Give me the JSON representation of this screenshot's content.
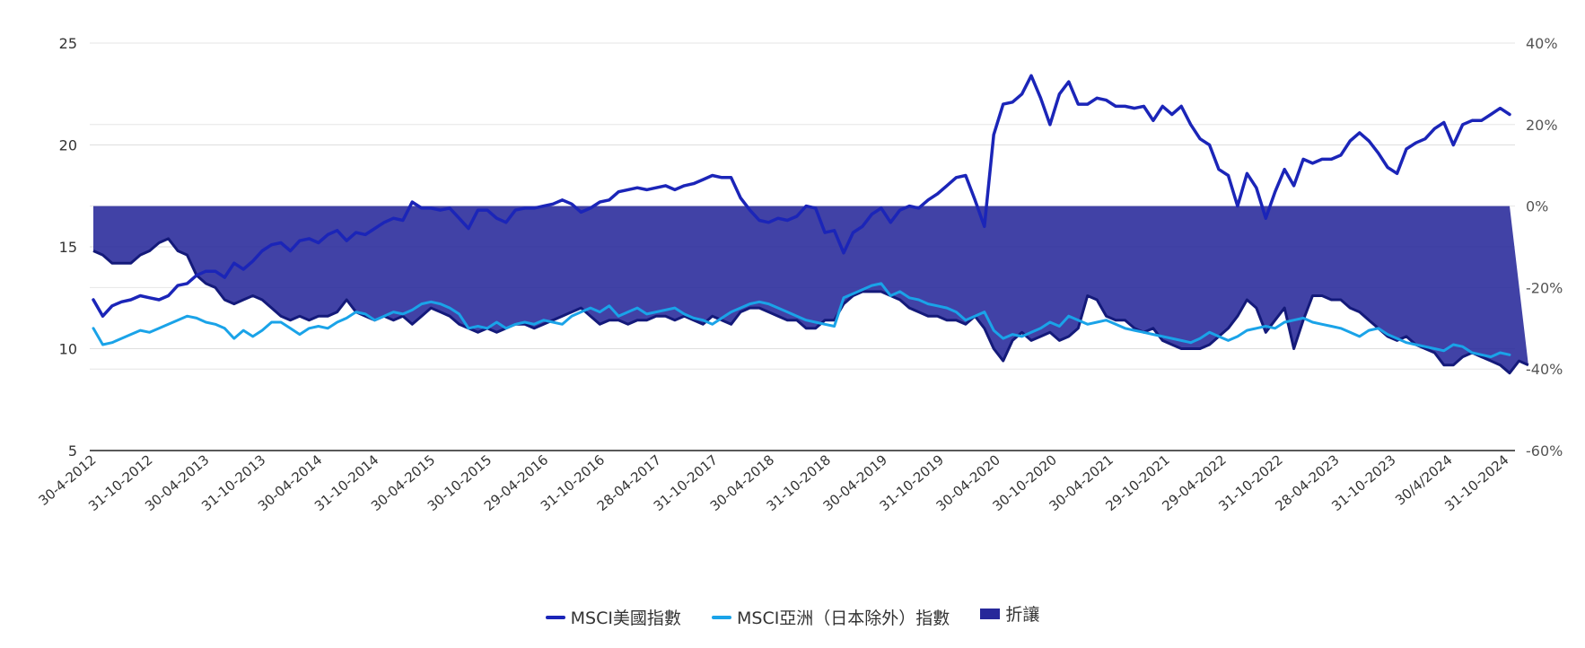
{
  "chart_data": {
    "type": "line",
    "colors": {
      "usa": "#1b25b8",
      "asia": "#1aa3e8",
      "discount": "#27289a"
    },
    "y_left": {
      "ticks": [
        "5",
        "10",
        "15",
        "20",
        "25"
      ],
      "range": [
        5,
        25
      ]
    },
    "y_right": {
      "ticks": [
        "40%",
        "20%",
        "0%",
        "-20%",
        "-40%",
        "-60%"
      ],
      "range": [
        -0.6,
        0.4
      ]
    },
    "x_tick_labels": [
      "30-4-2012",
      "31-10-2012",
      "30-04-2013",
      "31-10-2013",
      "30-04-2014",
      "31-10-2014",
      "30-04-2015",
      "30-10-2015",
      "29-04-2016",
      "31-10-2016",
      "28-04-2017",
      "31-10-2017",
      "30-04-2018",
      "31-10-2018",
      "30-04-2019",
      "31-10-2019",
      "30-04-2020",
      "30-10-2020",
      "30-04-2021",
      "29-10-2021",
      "29-04-2022",
      "31-10-2022",
      "28-04-2023",
      "31-10-2023",
      "30/4/2024",
      "31-10-2024"
    ],
    "legend": [
      {
        "label": "MSCI美國指數",
        "key": "usa"
      },
      {
        "label": "MSCI亞洲（日本除外）指數",
        "key": "asia"
      },
      {
        "label": "折讓",
        "key": "discount"
      }
    ],
    "series": [
      {
        "name": "MSCI美國指數",
        "axis": "left",
        "values": [
          12.4,
          11.6,
          12.1,
          12.3,
          12.4,
          12.6,
          12.5,
          12.4,
          12.6,
          13.1,
          13.2,
          13.6,
          13.8,
          13.8,
          13.5,
          14.2,
          13.9,
          14.3,
          14.8,
          15.1,
          15.2,
          14.8,
          15.3,
          15.4,
          15.2,
          15.6,
          15.8,
          15.3,
          15.7,
          15.6,
          15.9,
          16.2,
          16.4,
          16.3,
          17.2,
          16.9,
          16.9,
          16.8,
          16.9,
          16.4,
          15.9,
          16.8,
          16.8,
          16.4,
          16.2,
          16.8,
          16.9,
          16.9,
          17.0,
          17.1,
          17.3,
          17.1,
          16.7,
          16.9,
          17.2,
          17.3,
          17.7,
          17.8,
          17.9,
          17.8,
          17.9,
          18.0,
          17.8,
          18.0,
          18.1,
          18.3,
          18.5,
          18.4,
          18.4,
          17.4,
          16.8,
          16.3,
          16.2,
          16.4,
          16.3,
          16.5,
          17.0,
          16.9,
          15.7,
          15.8,
          14.7,
          15.7,
          16.0,
          16.6,
          16.9,
          16.2,
          16.8,
          17.0,
          16.9,
          17.3,
          17.6,
          18.0,
          18.4,
          18.5,
          17.3,
          16.0,
          20.5,
          22.0,
          22.1,
          22.5,
          23.4,
          22.3,
          21.0,
          22.5,
          23.1,
          22.0,
          22.0,
          22.3,
          22.2,
          21.9,
          21.9,
          21.8,
          21.9,
          21.2,
          21.9,
          21.5,
          21.9,
          21.0,
          20.3,
          20.0,
          18.8,
          18.5,
          17.0,
          18.6,
          17.9,
          16.4,
          17.7,
          18.8,
          18.0,
          19.3,
          19.1,
          19.3,
          19.3,
          19.5,
          20.2,
          20.6,
          20.2,
          19.6,
          18.9,
          18.6,
          19.8,
          20.1,
          20.3,
          20.8,
          21.1,
          20.0,
          21.0,
          21.2,
          21.2,
          21.5,
          21.8,
          21.5
        ]
      },
      {
        "name": "MSCI亞洲（日本除外）指數",
        "axis": "left",
        "values": [
          11.0,
          10.2,
          10.3,
          10.5,
          10.7,
          10.9,
          10.8,
          11.0,
          11.2,
          11.4,
          11.6,
          11.5,
          11.3,
          11.2,
          11.0,
          10.5,
          10.9,
          10.6,
          10.9,
          11.3,
          11.3,
          11.0,
          10.7,
          11.0,
          11.1,
          11.0,
          11.3,
          11.5,
          11.8,
          11.7,
          11.4,
          11.6,
          11.8,
          11.7,
          11.9,
          12.2,
          12.3,
          12.2,
          12.0,
          11.7,
          11.0,
          11.1,
          11.0,
          11.3,
          11.0,
          11.2,
          11.3,
          11.2,
          11.4,
          11.3,
          11.2,
          11.6,
          11.8,
          12.0,
          11.8,
          12.1,
          11.6,
          11.8,
          12.0,
          11.7,
          11.8,
          11.9,
          12.0,
          11.7,
          11.5,
          11.4,
          11.2,
          11.5,
          11.8,
          12.0,
          12.2,
          12.3,
          12.2,
          12.0,
          11.8,
          11.6,
          11.4,
          11.3,
          11.2,
          11.1,
          12.5,
          12.7,
          12.9,
          13.1,
          13.2,
          12.6,
          12.8,
          12.5,
          12.4,
          12.2,
          12.1,
          12.0,
          11.8,
          11.4,
          11.6,
          11.8,
          10.9,
          10.5,
          10.7,
          10.6,
          10.8,
          11.0,
          11.3,
          11.1,
          11.6,
          11.4,
          11.2,
          11.3,
          11.4,
          11.2,
          11.0,
          10.9,
          10.8,
          10.7,
          10.6,
          10.5,
          10.4,
          10.3,
          10.5,
          10.8,
          10.6,
          10.4,
          10.6,
          10.9,
          11.0,
          11.1,
          11.0,
          11.3,
          11.4,
          11.5,
          11.3,
          11.2,
          11.1,
          11.0,
          10.8,
          10.6,
          10.9,
          11.0,
          10.7,
          10.5,
          10.3,
          10.2,
          10.1,
          10.0,
          9.9,
          10.2,
          10.1,
          9.8,
          9.7,
          9.6,
          9.8,
          9.7
        ]
      },
      {
        "name": "折讓",
        "axis": "right",
        "type": "area",
        "values": [
          -0.11,
          -0.12,
          -0.14,
          -0.14,
          -0.14,
          -0.12,
          -0.11,
          -0.09,
          -0.08,
          -0.11,
          -0.12,
          -0.17,
          -0.19,
          -0.2,
          -0.23,
          -0.24,
          -0.23,
          -0.22,
          -0.23,
          -0.25,
          -0.27,
          -0.28,
          -0.27,
          -0.28,
          -0.27,
          -0.27,
          -0.26,
          -0.23,
          -0.26,
          -0.27,
          -0.28,
          -0.27,
          -0.28,
          -0.27,
          -0.29,
          -0.27,
          -0.25,
          -0.26,
          -0.27,
          -0.29,
          -0.3,
          -0.31,
          -0.3,
          -0.31,
          -0.3,
          -0.29,
          -0.29,
          -0.3,
          -0.29,
          -0.28,
          -0.27,
          -0.26,
          -0.25,
          -0.27,
          -0.29,
          -0.28,
          -0.28,
          -0.29,
          -0.28,
          -0.28,
          -0.27,
          -0.27,
          -0.28,
          -0.27,
          -0.28,
          -0.29,
          -0.27,
          -0.28,
          -0.29,
          -0.26,
          -0.25,
          -0.25,
          -0.26,
          -0.27,
          -0.28,
          -0.28,
          -0.3,
          -0.3,
          -0.28,
          -0.28,
          -0.24,
          -0.22,
          -0.21,
          -0.21,
          -0.21,
          -0.22,
          -0.23,
          -0.25,
          -0.26,
          -0.27,
          -0.27,
          -0.28,
          -0.28,
          -0.29,
          -0.27,
          -0.3,
          -0.35,
          -0.38,
          -0.33,
          -0.31,
          -0.33,
          -0.32,
          -0.31,
          -0.33,
          -0.32,
          -0.3,
          -0.22,
          -0.23,
          -0.27,
          -0.28,
          -0.28,
          -0.3,
          -0.31,
          -0.3,
          -0.33,
          -0.34,
          -0.35,
          -0.35,
          -0.35,
          -0.34,
          -0.32,
          -0.3,
          -0.27,
          -0.23,
          -0.25,
          -0.31,
          -0.28,
          -0.25,
          -0.35,
          -0.28,
          -0.22,
          -0.22,
          -0.23,
          -0.23,
          -0.25,
          -0.26,
          -0.28,
          -0.3,
          -0.32,
          -0.33,
          -0.32,
          -0.34,
          -0.35,
          -0.36,
          -0.39,
          -0.39,
          -0.37,
          -0.36,
          -0.37,
          -0.38,
          -0.39,
          -0.41,
          -0.38,
          -0.39
        ]
      }
    ]
  }
}
